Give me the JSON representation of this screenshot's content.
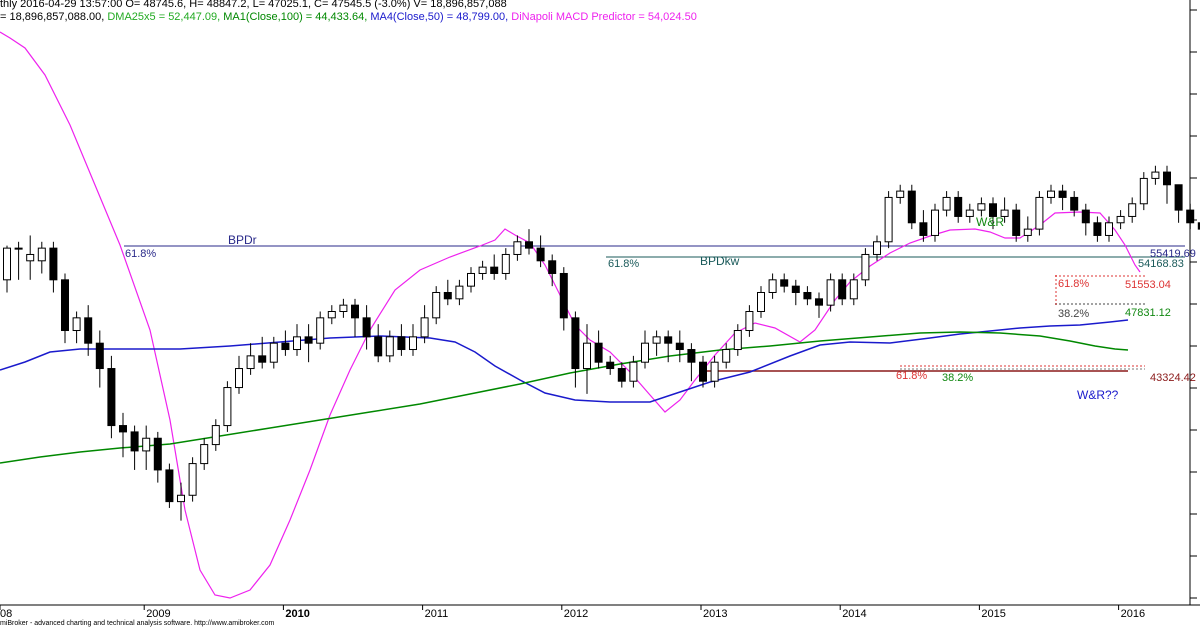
{
  "header": {
    "line1": "thly 2016-04-29 13:57:00 O= 48745.6, H= 48847.2, L= 47025.1, C= 47545.5 (-3.0%) V= 18,896,857,088",
    "line2": [
      {
        "text": "= 18,896,857,088.00, ",
        "color": "#000000"
      },
      {
        "text": "DMA25x5 = 52,447.09, ",
        "color": "#22aa22"
      },
      {
        "text": "MA1(Close,100) = 44,433.64, ",
        "color": "#008800"
      },
      {
        "text": "MA4(Close,50) = 48,799.00, ",
        "color": "#1a1acc"
      },
      {
        "text": "DiNapoli MACD Predictor = 54,024.50",
        "color": "#ee22ee"
      }
    ]
  },
  "footer": "miBroker - advanced charting and technical analysis software. http://www.amibroker.com",
  "chart_data": {
    "type": "candlestick",
    "x_axis": {
      "labels": [
        "08",
        "2009",
        "2010",
        "2011",
        "2012",
        "2013",
        "2014",
        "2015",
        "2016"
      ],
      "label_months": [
        -1,
        12,
        24,
        36,
        48,
        60,
        72,
        84,
        96
      ]
    },
    "y_range": [
      23000,
      69000
    ],
    "candles": [
      [
        48500,
        51000,
        47500,
        51200
      ],
      [
        51000,
        51000,
        48500,
        51500
      ],
      [
        50000,
        50500,
        48500,
        52000
      ],
      [
        50000,
        51000,
        49000,
        51500
      ],
      [
        51000,
        48500,
        47500,
        51500
      ],
      [
        48500,
        44500,
        43500,
        49000
      ],
      [
        44500,
        45500,
        43500,
        46000
      ],
      [
        45500,
        43500,
        42500,
        46500
      ],
      [
        43500,
        41500,
        40000,
        44500
      ],
      [
        41500,
        37000,
        36000,
        42500
      ],
      [
        37000,
        36500,
        34500,
        38000
      ],
      [
        36500,
        35000,
        33500,
        37000
      ],
      [
        35000,
        36000,
        33500,
        37000
      ],
      [
        36000,
        33500,
        32500,
        36500
      ],
      [
        33500,
        31000,
        30500,
        34000
      ],
      [
        31000,
        31500,
        29500,
        32500
      ],
      [
        31500,
        34000,
        31000,
        34500
      ],
      [
        34000,
        35500,
        33500,
        36000
      ],
      [
        35500,
        37000,
        35000,
        37500
      ],
      [
        37000,
        40000,
        36500,
        40500
      ],
      [
        40000,
        41500,
        39500,
        42500
      ],
      [
        41500,
        42500,
        41000,
        43500
      ],
      [
        42500,
        42000,
        41500,
        44000
      ],
      [
        42000,
        43500,
        41500,
        44000
      ],
      [
        43500,
        43000,
        42500,
        44500
      ],
      [
        43000,
        44000,
        42500,
        45000
      ],
      [
        44000,
        43500,
        42000,
        45000
      ],
      [
        43500,
        45500,
        43000,
        46000
      ],
      [
        45500,
        46000,
        45000,
        46500
      ],
      [
        46000,
        46500,
        45500,
        47000
      ],
      [
        46500,
        45500,
        44000,
        47000
      ],
      [
        45500,
        44000,
        43000,
        46500
      ],
      [
        44000,
        42500,
        42000,
        45000
      ],
      [
        42500,
        44000,
        42000,
        44500
      ],
      [
        44000,
        43000,
        42500,
        45000
      ],
      [
        43000,
        44000,
        42500,
        45000
      ],
      [
        44000,
        45500,
        43500,
        46500
      ],
      [
        45500,
        47500,
        45000,
        48000
      ],
      [
        47500,
        47000,
        46500,
        48500
      ],
      [
        47000,
        48000,
        46500,
        48500
      ],
      [
        48000,
        49000,
        47500,
        49500
      ],
      [
        49000,
        49500,
        48500,
        50000
      ],
      [
        49500,
        49000,
        48500,
        50500
      ],
      [
        49000,
        50500,
        48500,
        51000
      ],
      [
        50500,
        51500,
        50000,
        52000
      ],
      [
        51500,
        51000,
        50500,
        52500
      ],
      [
        51000,
        50000,
        49500,
        52000
      ],
      [
        50000,
        49000,
        48000,
        50500
      ],
      [
        49000,
        45500,
        44500,
        49500
      ],
      [
        45500,
        41500,
        40000,
        46000
      ],
      [
        41500,
        43500,
        39500,
        45000
      ],
      [
        43500,
        42000,
        41500,
        44500
      ],
      [
        42000,
        41500,
        41000,
        42500
      ],
      [
        41500,
        40500,
        40000,
        42000
      ],
      [
        40500,
        42000,
        40000,
        42500
      ],
      [
        42000,
        43500,
        41500,
        44500
      ],
      [
        43500,
        44000,
        42500,
        44500
      ],
      [
        44000,
        43500,
        42000,
        44500
      ],
      [
        43500,
        43000,
        42000,
        44500
      ],
      [
        43000,
        42000,
        40500,
        43500
      ],
      [
        42000,
        40500,
        40000,
        42500
      ],
      [
        40500,
        42000,
        40000,
        42500
      ],
      [
        42000,
        43000,
        41500,
        43500
      ],
      [
        43000,
        44500,
        42500,
        45000
      ],
      [
        44500,
        46000,
        44000,
        46500
      ],
      [
        46000,
        47500,
        45500,
        48000
      ],
      [
        47500,
        48500,
        47000,
        49000
      ],
      [
        48500,
        48000,
        47500,
        49000
      ],
      [
        48000,
        47500,
        46500,
        48500
      ],
      [
        47500,
        47000,
        46500,
        48000
      ],
      [
        47000,
        46500,
        45500,
        47500
      ],
      [
        46500,
        48500,
        46000,
        49000
      ],
      [
        48500,
        47000,
        46500,
        49000
      ],
      [
        47000,
        48500,
        46500,
        49000
      ],
      [
        48500,
        50500,
        48000,
        51000
      ],
      [
        50500,
        51500,
        50000,
        52000
      ],
      [
        51500,
        55000,
        51000,
        55500
      ],
      [
        55000,
        55500,
        54500,
        56000
      ],
      [
        55500,
        53000,
        52500,
        56000
      ],
      [
        53000,
        52000,
        51500,
        54000
      ],
      [
        52000,
        54000,
        51500,
        54500
      ],
      [
        54000,
        55000,
        53500,
        55500
      ],
      [
        55000,
        53500,
        53000,
        55500
      ],
      [
        53500,
        54000,
        53000,
        54500
      ],
      [
        54000,
        54500,
        53500,
        55000
      ],
      [
        54500,
        53500,
        52500,
        55000
      ],
      [
        53500,
        54000,
        53000,
        55000
      ],
      [
        54000,
        52000,
        51500,
        54500
      ],
      [
        52000,
        52500,
        51500,
        53500
      ],
      [
        52500,
        55000,
        52000,
        55500
      ],
      [
        55000,
        55500,
        54500,
        56000
      ],
      [
        55500,
        55000,
        54000,
        56000
      ],
      [
        55000,
        54000,
        53500,
        55500
      ],
      [
        54000,
        53000,
        52000,
        54500
      ],
      [
        53000,
        52000,
        51500,
        53500
      ],
      [
        52000,
        53000,
        51500,
        53500
      ],
      [
        53000,
        53500,
        52500,
        54000
      ],
      [
        53500,
        54500,
        53000,
        55000
      ],
      [
        54500,
        56500,
        54000,
        57000
      ],
      [
        56500,
        57000,
        56000,
        57500
      ],
      [
        57000,
        56000,
        54500,
        57500
      ],
      [
        56000,
        54000,
        53000,
        56000
      ],
      [
        54000,
        53000,
        52500,
        54500
      ],
      [
        53000,
        52500,
        51000,
        53000
      ],
      [
        52500,
        51000,
        49500,
        52500
      ],
      [
        51000,
        50000,
        49000,
        51000
      ],
      [
        50000,
        50500,
        49500,
        51000
      ],
      [
        50500,
        48000,
        47500,
        51000
      ],
      [
        48000,
        46500,
        45500,
        48500
      ],
      [
        46500,
        45500,
        44500,
        47500
      ],
      [
        45500,
        46500,
        45000,
        47000
      ],
      [
        46500,
        48800,
        46000,
        49000
      ],
      [
        48745.6,
        47545.5,
        47025.1,
        48847.2
      ]
    ],
    "h_lines": [
      {
        "value": 55419.69,
        "color": "#2a2a8a",
        "label": "55419.69"
      },
      {
        "value": 54168.83,
        "color": "#1a5a5a",
        "label": "54168.83"
      }
    ],
    "annotations": [
      "BPDr",
      "61.8%",
      "61.8%",
      "BPDkw",
      "W&R",
      "W&R??",
      "61.8%",
      "38.2%",
      "61.8%",
      "38.2%",
      "51553.04",
      "47831.12",
      "43324.42"
    ]
  }
}
